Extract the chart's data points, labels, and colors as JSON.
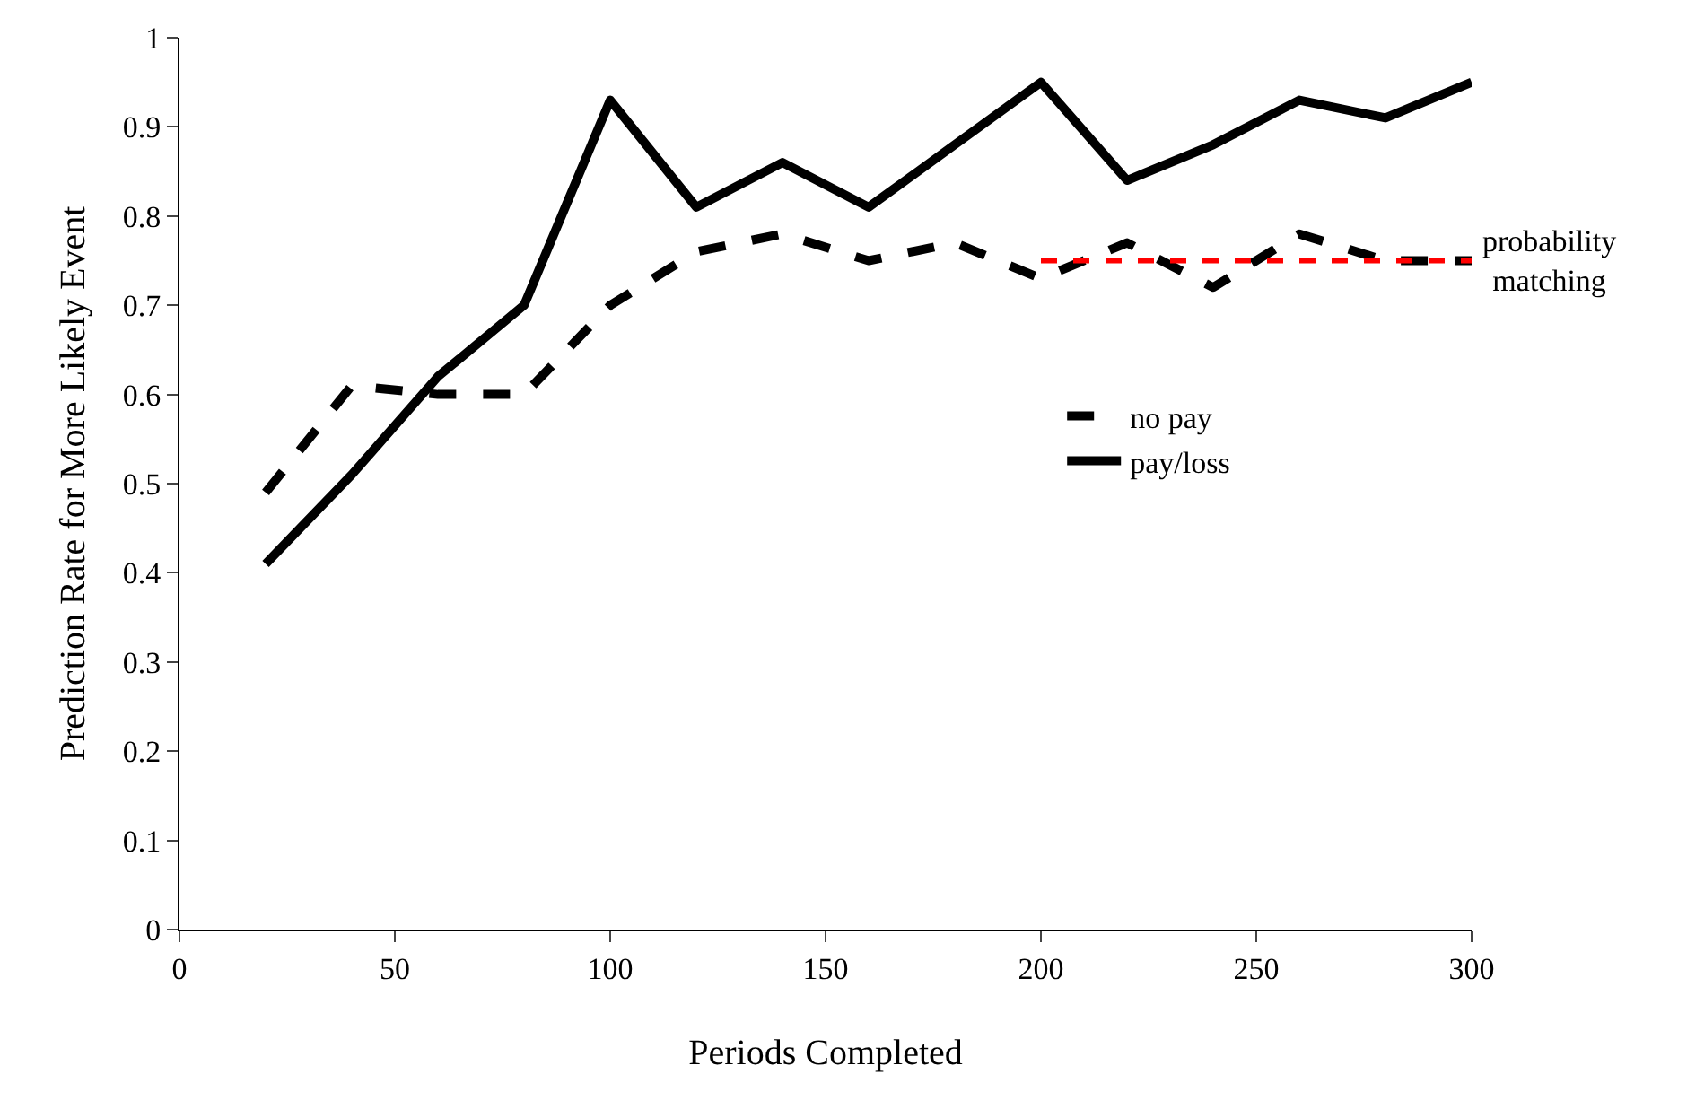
{
  "chart_data": {
    "type": "line",
    "xlabel": "Periods Completed",
    "ylabel": "Prediction Rate for More Likely Event",
    "x": [
      20,
      40,
      60,
      80,
      100,
      120,
      140,
      160,
      180,
      200,
      220,
      240,
      260,
      280,
      300
    ],
    "series": [
      {
        "name": "no pay",
        "color": "#000000",
        "line_style": "dashed",
        "values": [
          0.49,
          0.61,
          0.6,
          0.6,
          0.7,
          0.76,
          0.78,
          0.75,
          0.77,
          0.73,
          0.77,
          0.72,
          0.78,
          0.75,
          0.75
        ]
      },
      {
        "name": "pay/loss",
        "color": "#000000",
        "line_style": "solid",
        "values": [
          0.41,
          0.51,
          0.62,
          0.7,
          0.93,
          0.81,
          0.86,
          0.81,
          0.88,
          0.95,
          0.84,
          0.88,
          0.93,
          0.91,
          0.95
        ]
      },
      {
        "color": "#ff0000",
        "line_style": "dashed",
        "x": [
          200,
          300
        ],
        "values": [
          0.75,
          0.75
        ]
      }
    ],
    "annotations": [
      {
        "text": "probability\nmatching",
        "x": 300,
        "y": 0.75
      }
    ],
    "xlim": [
      0,
      300
    ],
    "xticks": [
      0,
      50,
      100,
      150,
      200,
      250,
      300
    ],
    "ylim": [
      0,
      1
    ],
    "yticks": [
      0,
      0.1,
      0.2,
      0.3,
      0.4,
      0.5,
      0.6,
      0.7,
      0.8,
      0.9,
      1
    ],
    "legend": "right",
    "marker": "none"
  }
}
